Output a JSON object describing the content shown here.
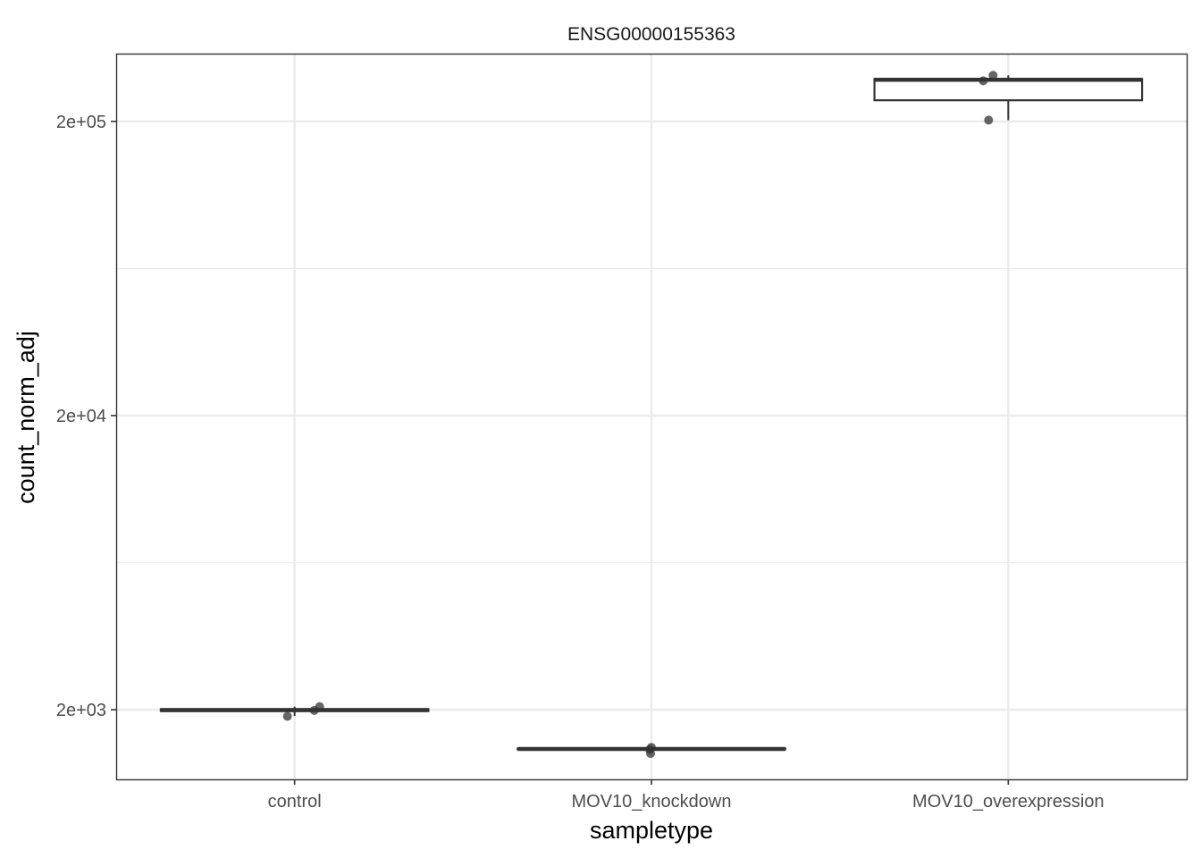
{
  "chart_data": {
    "type": "box",
    "title": "ENSG00000155363",
    "xlabel": "sampletype",
    "ylabel": "count_norm_adj",
    "y_scale": "log10",
    "ylim": [
      1160,
      340000
    ],
    "y_ticks": [
      2000,
      20000,
      200000
    ],
    "y_tick_labels": [
      "2e+03",
      "2e+04",
      "2e+05"
    ],
    "y_minor_ticks": [
      6324.56,
      63245.6
    ],
    "grid": true,
    "categories": [
      "control",
      "MOV10_knockdown",
      "MOV10_overexpression"
    ],
    "boxes": [
      {
        "category": "control",
        "min": 1905,
        "q1": 1980,
        "median": 1995,
        "q3": 2010,
        "max": 2050
      },
      {
        "category": "MOV10_knockdown",
        "min": 1465,
        "q1": 1468,
        "median": 1472,
        "q3": 1476,
        "max": 1490
      },
      {
        "category": "MOV10_overexpression",
        "min": 202000,
        "q1": 236000,
        "median": 277000,
        "q3": 279000,
        "max": 287000
      }
    ],
    "points": [
      {
        "category": "control",
        "value": 1900
      },
      {
        "category": "control",
        "value": 1990
      },
      {
        "category": "control",
        "value": 2050
      },
      {
        "category": "MOV10_knockdown",
        "value": 1420
      },
      {
        "category": "MOV10_knockdown",
        "value": 1465
      },
      {
        "category": "MOV10_knockdown",
        "value": 1490
      },
      {
        "category": "MOV10_overexpression",
        "value": 202000
      },
      {
        "category": "MOV10_overexpression",
        "value": 275000
      },
      {
        "category": "MOV10_overexpression",
        "value": 287000
      }
    ],
    "colors": {
      "box_stroke": "#333333",
      "point_fill": "#333333",
      "grid": "#ebebeb",
      "panel_border": "#333333"
    }
  }
}
